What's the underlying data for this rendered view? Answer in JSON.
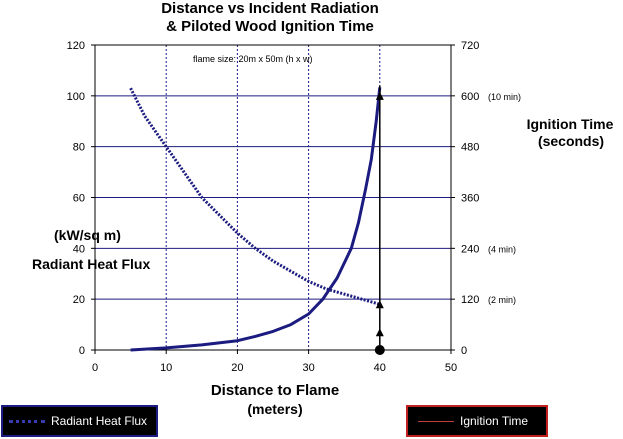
{
  "chart_data": {
    "type": "line",
    "title": "Distance vs Incident Radiation",
    "subtitle": "& Piloted Wood Ignition Time",
    "annotation": "flame size:  20m x 50m (h x w)",
    "xlabel": "Distance to Flame",
    "xlabel_unit": "(meters)",
    "ylabel_left_unit": "(kW/sq m)",
    "ylabel_left": "Radiant Heat Flux",
    "ylabel_right": "Ignition Time",
    "ylabel_right_unit": "(seconds)",
    "xlim": [
      0,
      50
    ],
    "ylim_left": [
      0,
      120
    ],
    "ylim_right": [
      0,
      720
    ],
    "x_ticks": [
      "0",
      "10",
      "20",
      "30",
      "40",
      "50"
    ],
    "y_left_ticks": [
      "0",
      "20",
      "40",
      "60",
      "80",
      "100",
      "120"
    ],
    "y_right_ticks": [
      "0",
      "120",
      "240",
      "360",
      "480",
      "600",
      "720"
    ],
    "y_right_tick_notes": [
      {
        "value": 120,
        "text": "(2 min)"
      },
      {
        "value": 240,
        "text": "(4 min)"
      },
      {
        "value": 600,
        "text": "(10 min)"
      }
    ],
    "grid": {
      "horizontal": true,
      "vertical_dotted": true
    },
    "colors": {
      "heat_flux": "#1b1b80",
      "ignition": "#1b1b80",
      "grid": "#1b1b80"
    },
    "series": [
      {
        "name": "Radiant Heat Flux",
        "axis": "left",
        "style": "dotted",
        "x": [
          5,
          7,
          10,
          12.5,
          15,
          17.5,
          20,
          22.5,
          25,
          27.5,
          30,
          32.5,
          35,
          37.5,
          40
        ],
        "y": [
          103,
          92,
          80,
          70,
          60,
          53,
          46,
          40,
          35,
          31,
          27,
          24,
          22,
          20,
          18
        ]
      },
      {
        "name": "Ignition Time",
        "axis": "right",
        "style": "solid",
        "x": [
          5,
          10,
          15,
          20,
          22.5,
          25,
          27.5,
          30,
          32,
          34,
          36,
          37,
          38,
          38.8,
          39.5,
          40
        ],
        "y": [
          0,
          5,
          12,
          22,
          32,
          44,
          60,
          85,
          120,
          170,
          240,
          300,
          380,
          450,
          540,
          620
        ]
      }
    ],
    "markers": [
      {
        "shape": "triangle",
        "x": 40,
        "y_left": 100
      },
      {
        "shape": "triangle",
        "x": 40,
        "y_left": 18
      },
      {
        "shape": "triangle",
        "x": 40,
        "y_left": 7
      },
      {
        "shape": "circle",
        "x": 40,
        "y_left": 0
      }
    ],
    "marker_line": {
      "x": 40,
      "y_left_from": 0,
      "y_left_to": 104
    },
    "legend": [
      {
        "name": "Radiant Heat Flux",
        "position": "bottom-left"
      },
      {
        "name": "Ignition Time",
        "position": "bottom-right"
      }
    ]
  }
}
